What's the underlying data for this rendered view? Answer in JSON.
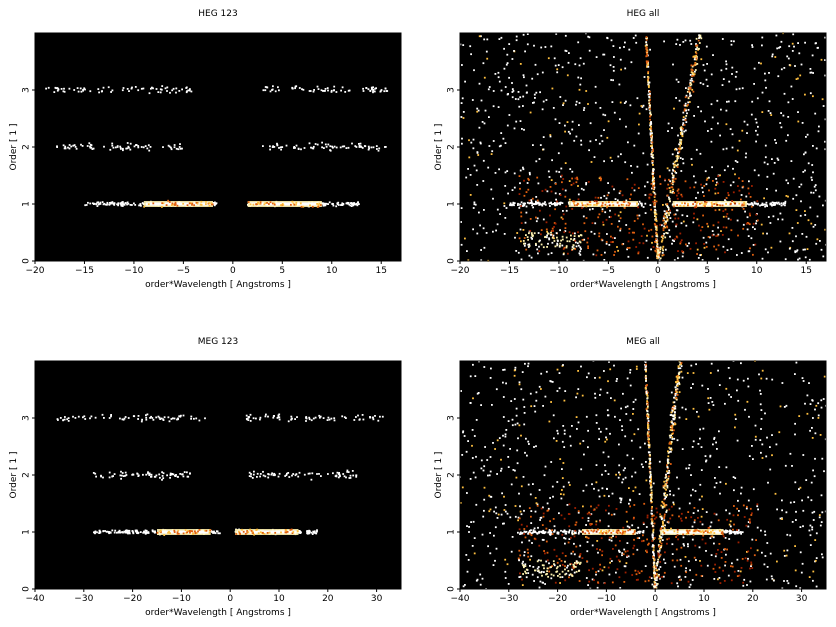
{
  "chart_data": [
    {
      "type": "heatmap",
      "title": "HEG 123",
      "xlabel": "order*Wavelength [ Angstroms ]",
      "ylabel": "Order [ 1 ]",
      "xlim": [
        -20,
        17
      ],
      "ylim": [
        0,
        4
      ],
      "xticks": [
        -20,
        -15,
        -10,
        -5,
        0,
        5,
        10,
        15
      ],
      "yticks": [
        0,
        1,
        2,
        3
      ],
      "background": "#000000",
      "colors": [
        "#ffffff",
        "#fff3b0",
        "#ffc040",
        "#e06010",
        "#a02000"
      ],
      "bands": [
        {
          "order": 1,
          "x_ranges": [
            [
              -15,
              -1.5
            ],
            [
              1.5,
              13
            ]
          ],
          "bright_ranges": [
            [
              -9,
              -2
            ],
            [
              1.5,
              9
            ]
          ],
          "density": "high"
        },
        {
          "order": 2,
          "x_ranges": [
            [
              -18,
              -5
            ],
            [
              3,
              16
            ]
          ],
          "density": "low"
        },
        {
          "order": 3,
          "x_ranges": [
            [
              -19,
              -4
            ],
            [
              3,
              16
            ]
          ],
          "density": "low"
        }
      ]
    },
    {
      "type": "heatmap",
      "title": "HEG all",
      "xlabel": "order*Wavelength [ Angstroms ]",
      "ylabel": "Order [ 1 ]",
      "xlim": [
        -20,
        17
      ],
      "ylim": [
        0,
        4
      ],
      "xticks": [
        -20,
        -15,
        -10,
        -5,
        0,
        5,
        10,
        15
      ],
      "yticks": [
        0,
        1,
        2,
        3
      ],
      "background": "#000000",
      "colors": [
        "#ffffff",
        "#fff3b0",
        "#ffc040",
        "#e06010",
        "#a02000"
      ],
      "bands": [
        {
          "order": 1,
          "x_ranges": [
            [
              -15,
              -1.5
            ],
            [
              1.5,
              13
            ]
          ],
          "bright_ranges": [
            [
              -9,
              -2
            ],
            [
              1.5,
              9
            ]
          ],
          "density": "high"
        }
      ],
      "diagonal_streaks": [
        {
          "from": [
            0,
            0
          ],
          "to": [
            4.3,
            4
          ],
          "width": 0.9
        },
        {
          "from": [
            0,
            0
          ],
          "to": [
            -1.2,
            4
          ],
          "width": 0.3
        }
      ],
      "scatter_background": "dense"
    },
    {
      "type": "heatmap",
      "title": "MEG 123",
      "xlabel": "order*Wavelength [ Angstroms ]",
      "ylabel": "Order [ 1 ]",
      "xlim": [
        -40,
        35
      ],
      "ylim": [
        0,
        4
      ],
      "xticks": [
        -40,
        -30,
        -20,
        -10,
        0,
        10,
        20,
        30
      ],
      "yticks": [
        0,
        1,
        2,
        3
      ],
      "background": "#000000",
      "colors": [
        "#ffffff",
        "#fff3b0",
        "#ffc040",
        "#e06010",
        "#a02000"
      ],
      "bands": [
        {
          "order": 1,
          "x_ranges": [
            [
              -28,
              -2
            ],
            [
              1,
              18
            ]
          ],
          "bright_ranges": [
            [
              -15,
              -4
            ],
            [
              1,
              14
            ]
          ],
          "density": "high"
        },
        {
          "order": 2,
          "x_ranges": [
            [
              -28,
              -8
            ],
            [
              4,
              26
            ]
          ],
          "density": "low"
        },
        {
          "order": 3,
          "x_ranges": [
            [
              -36,
              -5
            ],
            [
              3,
              32
            ]
          ],
          "density": "low"
        }
      ]
    },
    {
      "type": "heatmap",
      "title": "MEG all",
      "xlabel": "order*Wavelength [ Angstroms ]",
      "ylabel": "Order [ 1 ]",
      "xlim": [
        -40,
        35
      ],
      "ylim": [
        0,
        4
      ],
      "xticks": [
        -40,
        -30,
        -20,
        -10,
        0,
        10,
        20,
        30
      ],
      "yticks": [
        0,
        1,
        2,
        3
      ],
      "background": "#000000",
      "colors": [
        "#ffffff",
        "#fff3b0",
        "#ffc040",
        "#e06010",
        "#a02000"
      ],
      "bands": [
        {
          "order": 1,
          "x_ranges": [
            [
              -28,
              -2
            ],
            [
              1,
              18
            ]
          ],
          "bright_ranges": [
            [
              -15,
              -4
            ],
            [
              1,
              14
            ]
          ],
          "density": "high"
        }
      ],
      "diagonal_streaks": [
        {
          "from": [
            0,
            0
          ],
          "to": [
            5,
            4
          ],
          "width": 1.5
        },
        {
          "from": [
            0,
            0
          ],
          "to": [
            -2,
            4
          ],
          "width": 0.5
        }
      ],
      "scatter_background": "dense"
    }
  ]
}
